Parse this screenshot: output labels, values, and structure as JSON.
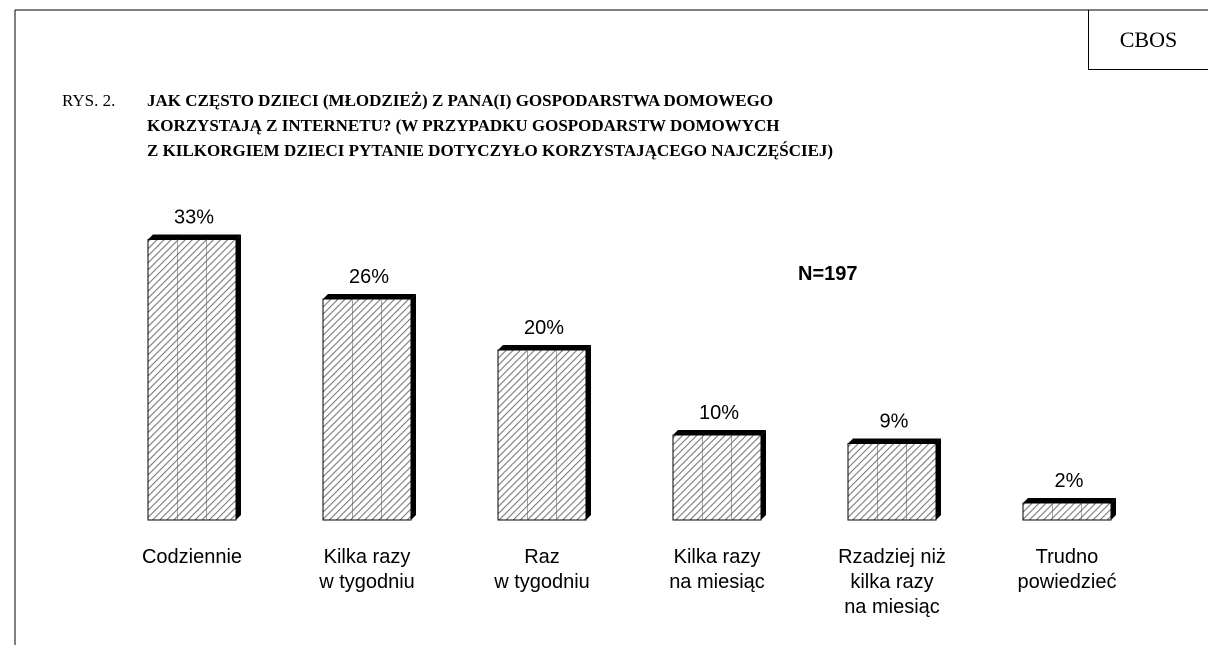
{
  "chart_data": {
    "type": "bar",
    "source": "CBOS",
    "figure_label": "RYS. 2.",
    "title": "JAK CZĘSTO DZIECI (MŁODZIEŻ) Z PANA(I) GOSPODARSTWA DOMOWEGO\nKORZYSTAJĄ Z INTERNETU? (W PRZYPADKU GOSPODARSTW DOMOWYCH\nZ KILKORGIEM DZIECI PYTANIE DOTYCZYŁO KORZYSTAJĄCEGO NAJCZĘŚCIEJ)",
    "annotation": "N=197",
    "categories": [
      "Codziennie",
      "Kilka razy\nw tygodniu",
      "Raz\nw tygodniu",
      "Kilka razy\nna miesiąc",
      "Rzadziej niż\nkilka razy\nna miesiąc",
      "Trudno\npowiedzieć"
    ],
    "values": [
      33,
      26,
      20,
      10,
      9,
      2
    ],
    "value_labels": [
      "33%",
      "26%",
      "20%",
      "10%",
      "9%",
      "2%"
    ],
    "color": "#7a7a7a"
  }
}
